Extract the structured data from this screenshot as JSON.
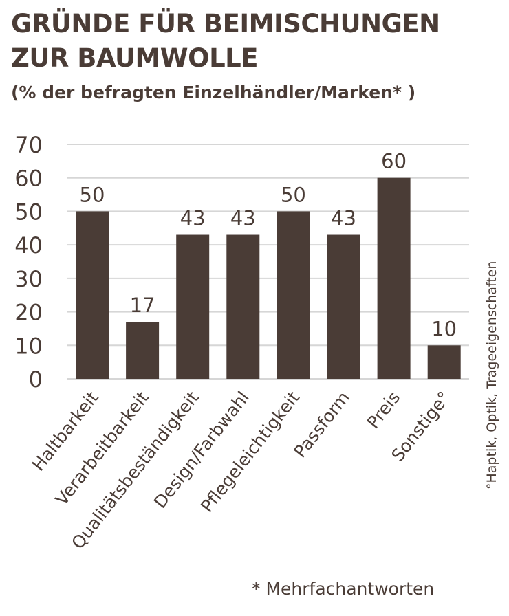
{
  "header": {
    "title": "GRÜNDE FÜR BEIMISCHUNGEN\nZUR BAUMWOLLE",
    "subtitle": "(% der befragten Einzelhändler/Marken* )"
  },
  "footnote": "* Mehrfachantworten",
  "side_note": "°Haptik, Optik, Trageeigenschaften",
  "colors": {
    "bar": "#4a3c36",
    "grid": "#d6d6d6",
    "axis_text": "#4a3c36"
  },
  "chart_data": {
    "type": "bar",
    "title": "GRÜNDE FÜR BEIMISCHUNGEN ZUR BAUMWOLLE",
    "subtitle": "(% der befragten Einzelhändler/Marken* )",
    "categories": [
      "Haltbarkeit",
      "Verarbeitbarkeit",
      "Qualitätsbeständigkeit",
      "Design/Farbwahl",
      "Pflegeleichtigkeit",
      "Passform",
      "Preis",
      "Sonstige°"
    ],
    "values": [
      50,
      17,
      43,
      43,
      50,
      43,
      60,
      10
    ],
    "ylim": [
      0,
      70
    ],
    "yticks": [
      0,
      10,
      20,
      30,
      40,
      50,
      60,
      70
    ],
    "grid": true,
    "data_labels": true
  }
}
